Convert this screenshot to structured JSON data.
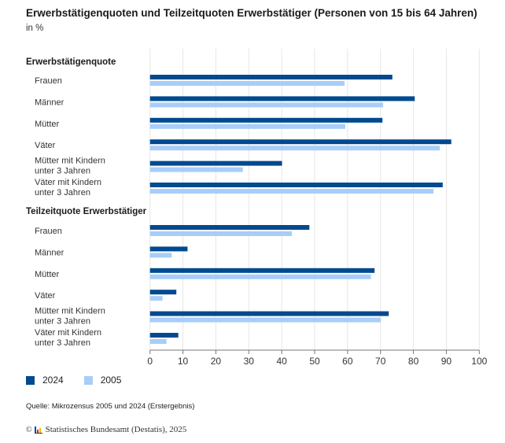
{
  "chart_data": {
    "type": "bar",
    "orientation": "horizontal",
    "title": "Erwerbstätigenquoten und Teilzeitquoten Erwerbstätiger (Personen von 15 bis 64 Jahren)",
    "subtitle": "in %",
    "xlabel": "",
    "ylabel": "",
    "xlim": [
      0,
      100
    ],
    "xticks": [
      "0",
      "10",
      "20",
      "30",
      "40",
      "50",
      "60",
      "70",
      "80",
      "90",
      "100"
    ],
    "grid": true,
    "legend_position": "bottom-left",
    "series": [
      {
        "name": "2024",
        "color": "#004a8f"
      },
      {
        "name": "2005",
        "color": "#a8cdf8"
      }
    ],
    "groups": [
      {
        "label": "Erwerbstätigenquote",
        "categories": [
          {
            "label": [
              "Frauen"
            ],
            "values": [
              73.6,
              59.1
            ]
          },
          {
            "label": [
              "Männer"
            ],
            "values": [
              80.4,
              70.8
            ]
          },
          {
            "label": [
              "Mütter"
            ],
            "values": [
              70.6,
              59.3
            ]
          },
          {
            "label": [
              "Väter"
            ],
            "values": [
              91.5,
              88.0
            ]
          },
          {
            "label": [
              "Mütter mit Kindern",
              "unter 3 Jahren"
            ],
            "values": [
              40.1,
              28.2
            ]
          },
          {
            "label": [
              "Väter mit Kindern",
              "unter 3 Jahren"
            ],
            "values": [
              88.9,
              86.1
            ]
          }
        ]
      },
      {
        "label": "Teilzeitquote Erwerbstätiger",
        "categories": [
          {
            "label": [
              "Frauen"
            ],
            "values": [
              48.4,
              43.1
            ]
          },
          {
            "label": [
              "Männer"
            ],
            "values": [
              11.4,
              6.6
            ]
          },
          {
            "label": [
              "Mütter"
            ],
            "values": [
              68.2,
              67.1
            ]
          },
          {
            "label": [
              "Väter"
            ],
            "values": [
              8.0,
              3.8
            ]
          },
          {
            "label": [
              "Mütter mit Kindern",
              "unter 3 Jahren"
            ],
            "values": [
              72.5,
              70.1
            ]
          },
          {
            "label": [
              "Väter mit Kindern",
              "unter 3 Jahren"
            ],
            "values": [
              8.6,
              5.0
            ]
          }
        ]
      }
    ]
  },
  "footer": {
    "source": "Quelle: Mikrozensus 2005 und 2024 (Erstergebnis)",
    "copyright_symbol": "©",
    "copyright_text": "Statistisches Bundesamt (Destatis), 2025"
  }
}
